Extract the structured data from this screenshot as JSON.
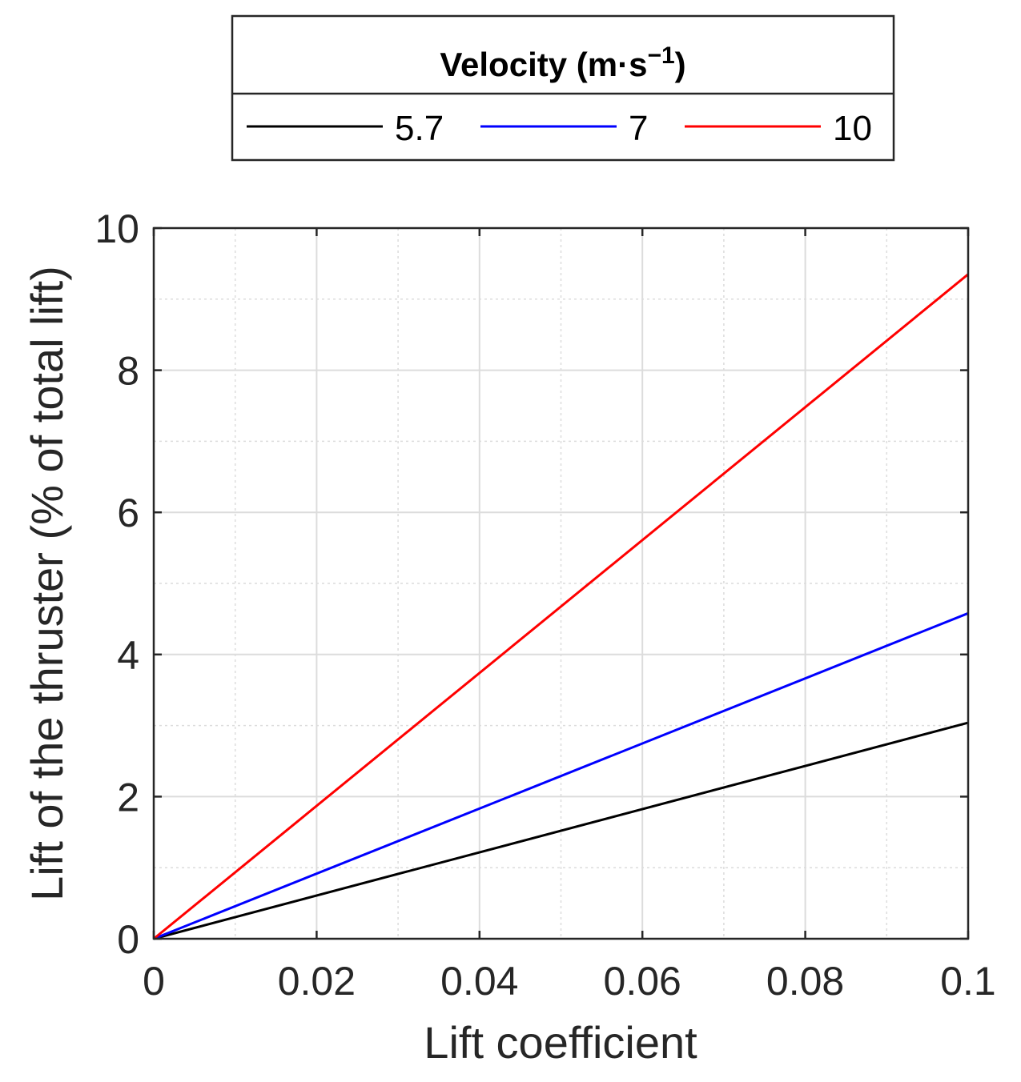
{
  "chart_data": {
    "type": "line",
    "xlabel": "Lift coefficient",
    "ylabel": "Lift of the thruster (% of total lift)",
    "xlim": [
      0,
      0.1
    ],
    "ylim": [
      0,
      10
    ],
    "xticks": [
      0,
      0.02,
      0.04,
      0.06,
      0.08,
      0.1
    ],
    "xtick_labels": [
      "0",
      "0.02",
      "0.04",
      "0.06",
      "0.08",
      "0.1"
    ],
    "yticks": [
      0,
      2,
      4,
      6,
      8,
      10
    ],
    "ytick_labels": [
      "0",
      "2",
      "4",
      "6",
      "8",
      "10"
    ],
    "grid": true,
    "minor_grid": true,
    "legend": {
      "title_main": "Velocity (m·s",
      "title_sup": "−1",
      "title_end": ")",
      "placement": "top-center-outside",
      "orientation": "horizontal"
    },
    "series": [
      {
        "name": "5.7",
        "color": "#000000",
        "x": [
          0,
          0.1
        ],
        "y": [
          0,
          3.04
        ]
      },
      {
        "name": "7",
        "color": "#0000ff",
        "x": [
          0,
          0.1
        ],
        "y": [
          0,
          4.58
        ]
      },
      {
        "name": "10",
        "color": "#ff0000",
        "x": [
          0,
          0.1
        ],
        "y": [
          0,
          9.35
        ]
      }
    ]
  }
}
